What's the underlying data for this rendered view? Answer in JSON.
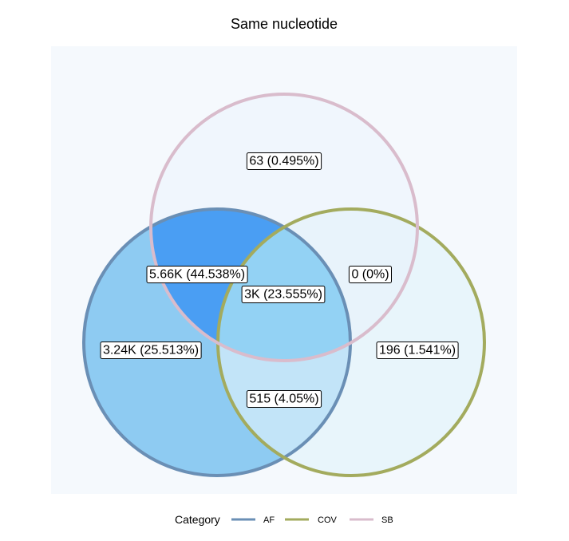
{
  "chart_data": {
    "type": "venn",
    "title": "Same nucleotide",
    "sets": [
      {
        "name": "AF",
        "color": "#6a8fb5"
      },
      {
        "name": "COV",
        "color": "#a3ab5e"
      },
      {
        "name": "SB",
        "color": "#d9bccc"
      }
    ],
    "regions": [
      {
        "sets": [
          "SB"
        ],
        "label": "63 (0.495%)",
        "count": 63,
        "percent": 0.495,
        "fill": "#f0f6fd"
      },
      {
        "sets": [
          "AF",
          "SB"
        ],
        "label": "5.66K (44.538%)",
        "count": 5660,
        "percent": 44.538,
        "fill": "#4a9ef3"
      },
      {
        "sets": [
          "COV",
          "SB"
        ],
        "label": "0 (0%)",
        "count": 0,
        "percent": 0,
        "fill": "#e8f3fb"
      },
      {
        "sets": [
          "AF",
          "COV",
          "SB"
        ],
        "label": "3K (23.555%)",
        "count": 3000,
        "percent": 23.555,
        "fill": "#93d2f4"
      },
      {
        "sets": [
          "AF"
        ],
        "label": "3.24K (25.513%)",
        "count": 3240,
        "percent": 25.513,
        "fill": "#8ecbf2"
      },
      {
        "sets": [
          "COV"
        ],
        "label": "196 (1.541%)",
        "count": 196,
        "percent": 1.541,
        "fill": "#e8f5fb"
      },
      {
        "sets": [
          "AF",
          "COV"
        ],
        "label": "515 (4.05%)",
        "count": 515,
        "percent": 4.05,
        "fill": "#c2e4f8"
      }
    ],
    "legend": {
      "title": "Category",
      "position": "bottom"
    },
    "panel_background": "#f5f9fd"
  }
}
